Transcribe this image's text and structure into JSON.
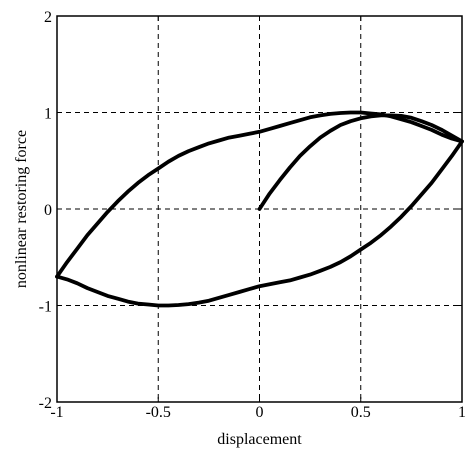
{
  "chart_data": {
    "type": "line",
    "title": "",
    "xlabel": "displacement",
    "ylabel": "nonlinear restoring force",
    "xlim": [
      -1,
      1
    ],
    "ylim": [
      -2,
      2
    ],
    "xticks": [
      -1,
      -0.5,
      0,
      0.5,
      1
    ],
    "xtick_labels": [
      "-1",
      "-0.5",
      "0",
      "0.5",
      "1"
    ],
    "yticks": [
      -2,
      -1,
      0,
      1,
      2
    ],
    "ytick_labels": [
      "-2",
      "-1",
      "0",
      "1",
      "2"
    ],
    "grid": true,
    "line_color": "#000000",
    "series": [
      {
        "x": [
          0,
          0.05,
          0.1,
          0.15,
          0.2,
          0.25,
          0.3,
          0.35,
          0.4,
          0.45,
          0.5,
          0.55,
          0.6,
          0.65,
          0.7,
          0.75,
          0.8,
          0.85,
          0.9,
          0.95,
          1.0
        ],
        "y": [
          0.0,
          0.16,
          0.3,
          0.43,
          0.55,
          0.65,
          0.74,
          0.81,
          0.87,
          0.91,
          0.94,
          0.96,
          0.97,
          0.97,
          0.965,
          0.945,
          0.91,
          0.87,
          0.82,
          0.76,
          0.7
        ]
      },
      {
        "x": [
          1.0,
          0.95,
          0.9,
          0.85,
          0.8,
          0.75,
          0.7,
          0.65,
          0.6,
          0.55,
          0.5,
          0.45,
          0.4,
          0.35,
          0.3,
          0.25,
          0.2,
          0.15,
          0.1,
          0.05,
          0.0,
          -0.05,
          -0.1,
          -0.15,
          -0.2,
          -0.25,
          -0.3,
          -0.35,
          -0.4,
          -0.45,
          -0.5,
          -0.55,
          -0.6,
          -0.65,
          -0.7,
          -0.75,
          -0.8,
          -0.85,
          -0.9,
          -0.95,
          -1.0
        ],
        "y": [
          0.7,
          0.55,
          0.41,
          0.27,
          0.15,
          0.03,
          -0.08,
          -0.18,
          -0.27,
          -0.35,
          -0.42,
          -0.49,
          -0.55,
          -0.6,
          -0.64,
          -0.68,
          -0.71,
          -0.74,
          -0.76,
          -0.78,
          -0.8,
          -0.83,
          -0.86,
          -0.89,
          -0.92,
          -0.95,
          -0.97,
          -0.985,
          -0.995,
          -1.0,
          -1.0,
          -0.99,
          -0.98,
          -0.96,
          -0.93,
          -0.9,
          -0.86,
          -0.82,
          -0.77,
          -0.73,
          -0.7
        ]
      },
      {
        "x": [
          -1.0,
          -0.95,
          -0.9,
          -0.85,
          -0.8,
          -0.75,
          -0.7,
          -0.65,
          -0.6,
          -0.55,
          -0.5,
          -0.45,
          -0.4,
          -0.35,
          -0.3,
          -0.25,
          -0.2,
          -0.15,
          -0.1,
          -0.05,
          0.0,
          0.05,
          0.1,
          0.15,
          0.2,
          0.25,
          0.3,
          0.35,
          0.4,
          0.45,
          0.5,
          0.55,
          0.6,
          0.65,
          0.7,
          0.75,
          0.8,
          0.85,
          0.9,
          0.95,
          1.0
        ],
        "y": [
          -0.7,
          -0.55,
          -0.41,
          -0.27,
          -0.15,
          -0.03,
          0.08,
          0.18,
          0.27,
          0.35,
          0.42,
          0.49,
          0.55,
          0.6,
          0.64,
          0.68,
          0.71,
          0.74,
          0.76,
          0.78,
          0.8,
          0.83,
          0.86,
          0.89,
          0.92,
          0.95,
          0.97,
          0.985,
          0.995,
          1.0,
          1.0,
          0.99,
          0.98,
          0.96,
          0.93,
          0.9,
          0.86,
          0.82,
          0.77,
          0.73,
          0.7
        ]
      }
    ]
  }
}
